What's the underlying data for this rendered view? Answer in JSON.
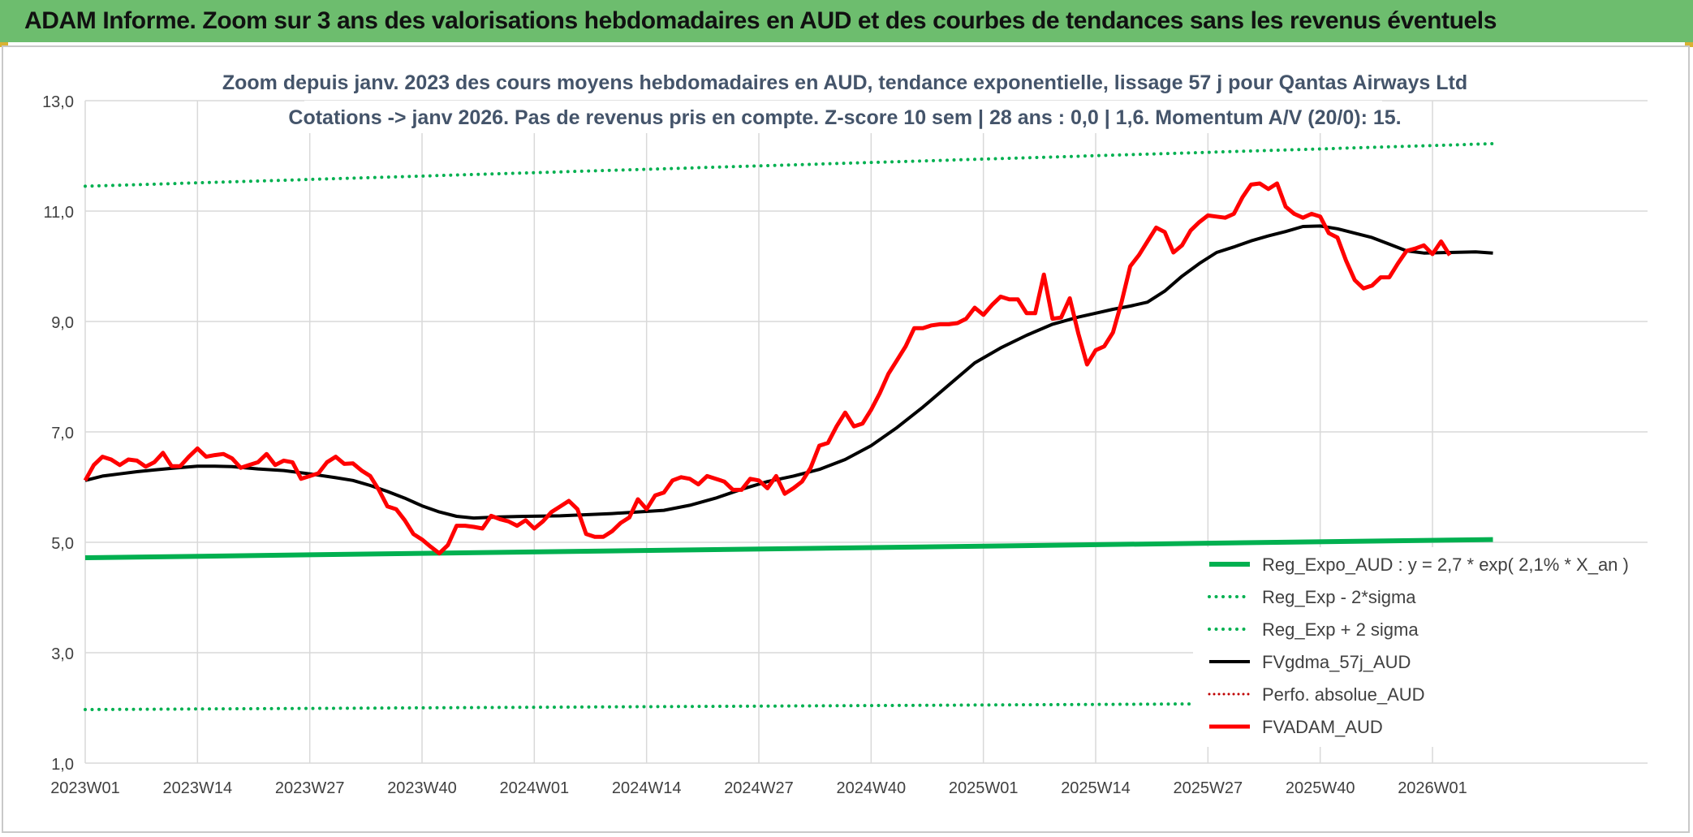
{
  "banner": {
    "title": "ADAM Informe. Zoom sur 3 ans des valorisations hebdomadaires en AUD et des courbes de tendances sans les revenus éventuels"
  },
  "colors": {
    "banner_bg": "#6dbd6e",
    "reg_expo": "#00b050",
    "fvadam": "#ff0000",
    "fvgdma": "#000000",
    "perfo": "#c00000"
  },
  "chart_data": {
    "type": "line",
    "title": "Zoom depuis janv. 2023 des cours moyens hebdomadaires en AUD, tendance exponentielle, lissage 57 j pour Qantas Airways Ltd",
    "subtitle": "Cotations -> janv 2026. Pas de revenus pris en compte. Z-score 10 sem | 28 ans : 0,0 | 1,6. Momentum A/V (20/0): 15.",
    "xlabel": "",
    "ylabel": "",
    "ylim": [
      1.0,
      13.0
    ],
    "yticks": [
      "1,0",
      "3,0",
      "5,0",
      "7,0",
      "9,0",
      "11,0",
      "13,0"
    ],
    "grid": true,
    "legend_position": "bottom-right",
    "x_tick_labels": [
      "2023W01",
      "2023W14",
      "2023W27",
      "2023W40",
      "2024W01",
      "2024W14",
      "2024W27",
      "2024W40",
      "2025W01",
      "2025W14",
      "2025W27",
      "2025W40",
      "2026W01"
    ],
    "x_range_weeks": [
      0,
      163
    ],
    "series": [
      {
        "name": "Reg_Expo_AUD : y = 2,7 * exp( 2,1% *  X_an )",
        "style": "solid-thick-green",
        "points": [
          [
            0,
            4.72
          ],
          [
            163,
            5.05
          ]
        ]
      },
      {
        "name": "Reg_Exp - 2*sigma",
        "style": "dotted-green",
        "points": [
          [
            0,
            1.97
          ],
          [
            163,
            2.1
          ]
        ]
      },
      {
        "name": "Reg_Exp + 2 sigma",
        "style": "dotted-green",
        "points": [
          [
            0,
            11.45
          ],
          [
            163,
            12.22
          ]
        ]
      },
      {
        "name": "FVgdma_57j_AUD",
        "style": "solid-black",
        "points": [
          [
            0,
            6.12
          ],
          [
            2,
            6.2
          ],
          [
            4,
            6.24
          ],
          [
            6,
            6.28
          ],
          [
            8,
            6.31
          ],
          [
            10,
            6.34
          ],
          [
            13,
            6.38
          ],
          [
            15,
            6.38
          ],
          [
            17,
            6.37
          ],
          [
            20,
            6.33
          ],
          [
            23,
            6.3
          ],
          [
            26,
            6.24
          ],
          [
            29,
            6.17
          ],
          [
            31,
            6.12
          ],
          [
            33,
            6.03
          ],
          [
            35,
            5.92
          ],
          [
            37,
            5.8
          ],
          [
            39,
            5.66
          ],
          [
            41,
            5.55
          ],
          [
            43,
            5.47
          ],
          [
            45,
            5.44
          ],
          [
            48,
            5.46
          ],
          [
            51,
            5.47
          ],
          [
            55,
            5.48
          ],
          [
            58,
            5.5
          ],
          [
            61,
            5.52
          ],
          [
            64,
            5.55
          ],
          [
            67,
            5.58
          ],
          [
            70,
            5.67
          ],
          [
            73,
            5.8
          ],
          [
            76,
            5.96
          ],
          [
            79,
            6.1
          ],
          [
            82,
            6.2
          ],
          [
            85,
            6.32
          ],
          [
            88,
            6.5
          ],
          [
            91,
            6.75
          ],
          [
            94,
            7.08
          ],
          [
            97,
            7.45
          ],
          [
            100,
            7.85
          ],
          [
            103,
            8.25
          ],
          [
            106,
            8.52
          ],
          [
            109,
            8.75
          ],
          [
            112,
            8.95
          ],
          [
            115,
            9.08
          ],
          [
            117,
            9.15
          ],
          [
            119,
            9.22
          ],
          [
            121,
            9.28
          ],
          [
            123,
            9.35
          ],
          [
            125,
            9.55
          ],
          [
            127,
            9.82
          ],
          [
            129,
            10.05
          ],
          [
            131,
            10.25
          ],
          [
            133,
            10.35
          ],
          [
            135,
            10.46
          ],
          [
            137,
            10.55
          ],
          [
            139,
            10.63
          ],
          [
            141,
            10.72
          ],
          [
            143,
            10.73
          ],
          [
            145,
            10.68
          ],
          [
            147,
            10.6
          ],
          [
            149,
            10.52
          ],
          [
            151,
            10.4
          ],
          [
            153,
            10.28
          ],
          [
            155,
            10.24
          ],
          [
            158,
            10.25
          ],
          [
            161,
            10.26
          ],
          [
            163,
            10.24
          ]
        ]
      },
      {
        "name": "Perfo. absolue_AUD",
        "style": "dotted-red",
        "points": []
      },
      {
        "name": "FVADAM_AUD",
        "style": "solid-thick-red",
        "points": [
          [
            0,
            6.12
          ],
          [
            1,
            6.4
          ],
          [
            2,
            6.55
          ],
          [
            3,
            6.5
          ],
          [
            4,
            6.4
          ],
          [
            5,
            6.5
          ],
          [
            6,
            6.48
          ],
          [
            7,
            6.37
          ],
          [
            8,
            6.45
          ],
          [
            9,
            6.62
          ],
          [
            10,
            6.38
          ],
          [
            11,
            6.38
          ],
          [
            12,
            6.55
          ],
          [
            13,
            6.7
          ],
          [
            14,
            6.55
          ],
          [
            15,
            6.58
          ],
          [
            16,
            6.6
          ],
          [
            17,
            6.52
          ],
          [
            18,
            6.35
          ],
          [
            19,
            6.4
          ],
          [
            20,
            6.45
          ],
          [
            21,
            6.6
          ],
          [
            22,
            6.4
          ],
          [
            23,
            6.48
          ],
          [
            24,
            6.45
          ],
          [
            25,
            6.15
          ],
          [
            26,
            6.2
          ],
          [
            27,
            6.25
          ],
          [
            28,
            6.45
          ],
          [
            29,
            6.55
          ],
          [
            30,
            6.42
          ],
          [
            31,
            6.43
          ],
          [
            32,
            6.3
          ],
          [
            33,
            6.2
          ],
          [
            34,
            5.95
          ],
          [
            35,
            5.65
          ],
          [
            36,
            5.6
          ],
          [
            37,
            5.4
          ],
          [
            38,
            5.15
          ],
          [
            39,
            5.05
          ],
          [
            40,
            4.92
          ],
          [
            41,
            4.8
          ],
          [
            42,
            4.95
          ],
          [
            43,
            5.3
          ],
          [
            44,
            5.3
          ],
          [
            45,
            5.28
          ],
          [
            46,
            5.25
          ],
          [
            47,
            5.48
          ],
          [
            48,
            5.42
          ],
          [
            49,
            5.38
          ],
          [
            50,
            5.3
          ],
          [
            51,
            5.4
          ],
          [
            52,
            5.25
          ],
          [
            53,
            5.38
          ],
          [
            54,
            5.55
          ],
          [
            55,
            5.65
          ],
          [
            56,
            5.75
          ],
          [
            57,
            5.6
          ],
          [
            58,
            5.15
          ],
          [
            59,
            5.1
          ],
          [
            60,
            5.1
          ],
          [
            61,
            5.2
          ],
          [
            62,
            5.35
          ],
          [
            63,
            5.45
          ],
          [
            64,
            5.78
          ],
          [
            65,
            5.6
          ],
          [
            66,
            5.85
          ],
          [
            67,
            5.9
          ],
          [
            68,
            6.12
          ],
          [
            69,
            6.18
          ],
          [
            70,
            6.15
          ],
          [
            71,
            6.05
          ],
          [
            72,
            6.2
          ],
          [
            73,
            6.15
          ],
          [
            74,
            6.1
          ],
          [
            75,
            5.95
          ],
          [
            76,
            5.95
          ],
          [
            77,
            6.15
          ],
          [
            78,
            6.12
          ],
          [
            79,
            5.98
          ],
          [
            80,
            6.2
          ],
          [
            81,
            5.88
          ],
          [
            82,
            5.98
          ],
          [
            83,
            6.1
          ],
          [
            84,
            6.35
          ],
          [
            85,
            6.75
          ],
          [
            86,
            6.8
          ],
          [
            87,
            7.1
          ],
          [
            88,
            7.35
          ],
          [
            89,
            7.1
          ],
          [
            90,
            7.15
          ],
          [
            91,
            7.4
          ],
          [
            92,
            7.7
          ],
          [
            93,
            8.05
          ],
          [
            94,
            8.3
          ],
          [
            95,
            8.55
          ],
          [
            96,
            8.88
          ],
          [
            97,
            8.88
          ],
          [
            98,
            8.93
          ],
          [
            99,
            8.95
          ],
          [
            100,
            8.95
          ],
          [
            101,
            8.97
          ],
          [
            102,
            9.05
          ],
          [
            103,
            9.25
          ],
          [
            104,
            9.12
          ],
          [
            105,
            9.3
          ],
          [
            106,
            9.45
          ],
          [
            107,
            9.4
          ],
          [
            108,
            9.4
          ],
          [
            109,
            9.15
          ],
          [
            110,
            9.15
          ],
          [
            111,
            9.85
          ],
          [
            112,
            9.05
          ],
          [
            113,
            9.07
          ],
          [
            114,
            9.42
          ],
          [
            115,
            8.78
          ],
          [
            116,
            8.22
          ],
          [
            117,
            8.48
          ],
          [
            118,
            8.55
          ],
          [
            119,
            8.8
          ],
          [
            120,
            9.35
          ],
          [
            121,
            10.0
          ],
          [
            122,
            10.2
          ],
          [
            123,
            10.45
          ],
          [
            124,
            10.7
          ],
          [
            125,
            10.62
          ],
          [
            126,
            10.25
          ],
          [
            127,
            10.38
          ],
          [
            128,
            10.65
          ],
          [
            129,
            10.8
          ],
          [
            130,
            10.92
          ],
          [
            131,
            10.9
          ],
          [
            132,
            10.88
          ],
          [
            133,
            10.95
          ],
          [
            134,
            11.25
          ],
          [
            135,
            11.48
          ],
          [
            136,
            11.5
          ],
          [
            137,
            11.4
          ],
          [
            138,
            11.5
          ],
          [
            139,
            11.08
          ],
          [
            140,
            10.95
          ],
          [
            141,
            10.88
          ],
          [
            142,
            10.95
          ],
          [
            143,
            10.9
          ],
          [
            144,
            10.6
          ],
          [
            145,
            10.52
          ],
          [
            146,
            10.1
          ],
          [
            147,
            9.75
          ],
          [
            148,
            9.6
          ],
          [
            149,
            9.65
          ],
          [
            150,
            9.8
          ],
          [
            151,
            9.8
          ],
          [
            152,
            10.05
          ],
          [
            153,
            10.28
          ],
          [
            154,
            10.32
          ],
          [
            155,
            10.38
          ],
          [
            156,
            10.22
          ],
          [
            157,
            10.45
          ],
          [
            158,
            10.2
          ]
        ]
      }
    ]
  }
}
